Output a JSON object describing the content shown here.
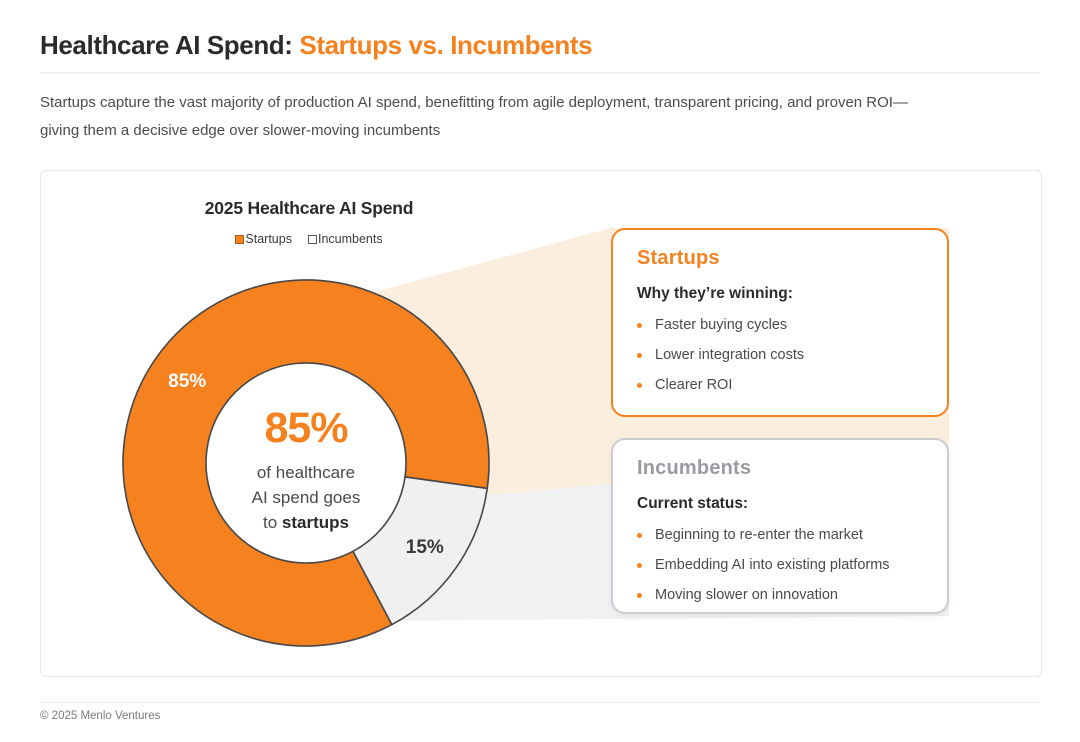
{
  "header": {
    "title_dark": "Healthcare AI Spend: ",
    "title_accent": "Startups vs. Incumbents",
    "subtitle_line1": "Startups capture the vast majority of production AI spend, benefitting from agile deployment, transparent pricing, and proven ROI—",
    "subtitle_line2": "giving them a decisive edge over slower-moving incumbents"
  },
  "chart_data": {
    "type": "pie",
    "donut": true,
    "title": "2025 Healthcare AI Spend",
    "legend_position": "top",
    "start_angle_deg": 152,
    "stroke": "#47474B",
    "label_radius": 145,
    "legend": [
      {
        "label": "Startups",
        "color": "#F5821F",
        "border": "#A85A18"
      },
      {
        "label": "Incumbents",
        "color": "#FFFFFF",
        "border": "#55555A"
      }
    ],
    "slices": [
      {
        "label": "Startups",
        "value": 85,
        "display": "85%",
        "color": "#F5821F",
        "label_color": "#FFFFFF"
      },
      {
        "label": "Incumbents",
        "value": 15,
        "display": "15%",
        "color": "#F0F0F1",
        "label_color": "#39393C"
      }
    ],
    "center": {
      "value": "85%",
      "line1": "of healthcare",
      "line2": "AI spend goes",
      "line3_prefix": "to ",
      "line3_bold": "startups"
    }
  },
  "cards": {
    "startups": {
      "heading": "Startups",
      "subheading": "Why they’re winning:",
      "bullets": [
        "Faster buying cycles",
        "Lower integration costs",
        "Clearer ROI"
      ]
    },
    "incumbents": {
      "heading": "Incumbents",
      "subheading": "Current status:",
      "bullets": [
        "Beginning to re-enter the market",
        "Embedding AI into existing platforms",
        "Moving slower on innovation"
      ]
    }
  },
  "theme": {
    "accent_orange": "#F5821F",
    "muted_gray": "#9A9BA0",
    "beam_orange": "#FBEEDE",
    "beam_gray": "#F1F1F3",
    "slice_stroke": "#47474B"
  },
  "footer": {
    "copyright": "© 2025 Menlo Ventures"
  }
}
